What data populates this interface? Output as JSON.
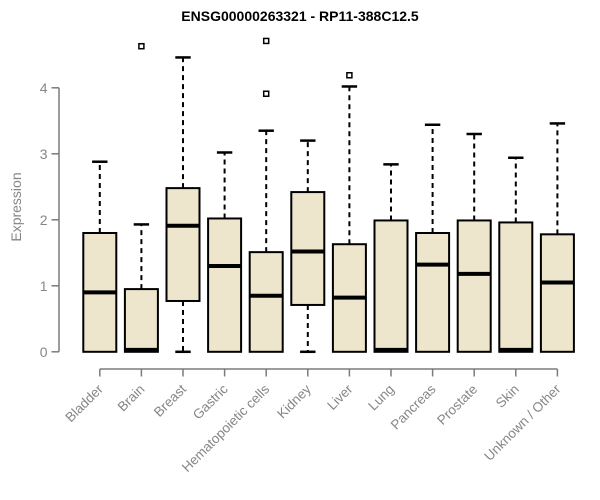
{
  "chart_data": {
    "type": "boxplot",
    "title": "ENSG00000263321 - RP11-388C12.5",
    "ylabel": "Expression",
    "xlabel": "",
    "ylim": [
      0,
      4.75
    ],
    "yticks": [
      0,
      1,
      2,
      3,
      4
    ],
    "grid": false,
    "legend": "none",
    "categories": [
      "Bladder",
      "Brain",
      "Breast",
      "Gastric",
      "Hematopoietic cells",
      "Kidney",
      "Liver",
      "Lung",
      "Pancreas",
      "Prostate",
      "Skin",
      "Unknown / Other"
    ],
    "boxes": [
      {
        "category": "Bladder",
        "whisker_low": 0,
        "q1": 0,
        "median": 0.9,
        "q3": 1.8,
        "whisker_high": 2.88,
        "outliers": []
      },
      {
        "category": "Brain",
        "whisker_low": 0,
        "q1": 0,
        "median": 0.03,
        "q3": 0.95,
        "whisker_high": 1.93,
        "outliers": [
          4.63
        ]
      },
      {
        "category": "Breast",
        "whisker_low": 0,
        "q1": 0.77,
        "median": 1.91,
        "q3": 2.48,
        "whisker_high": 4.46,
        "outliers": []
      },
      {
        "category": "Gastric",
        "whisker_low": 0,
        "q1": 0,
        "median": 1.3,
        "q3": 2.02,
        "whisker_high": 3.02,
        "outliers": []
      },
      {
        "category": "Hematopoietic cells",
        "whisker_low": 0,
        "q1": 0,
        "median": 0.85,
        "q3": 1.51,
        "whisker_high": 3.35,
        "outliers": [
          3.91,
          4.71
        ]
      },
      {
        "category": "Kidney",
        "whisker_low": 0,
        "q1": 0.71,
        "median": 1.52,
        "q3": 2.42,
        "whisker_high": 3.2,
        "outliers": []
      },
      {
        "category": "Liver",
        "whisker_low": 0,
        "q1": 0,
        "median": 0.82,
        "q3": 1.63,
        "whisker_high": 4.02,
        "outliers": [
          4.19
        ]
      },
      {
        "category": "Lung",
        "whisker_low": 0,
        "q1": 0,
        "median": 0.03,
        "q3": 1.99,
        "whisker_high": 2.84,
        "outliers": []
      },
      {
        "category": "Pancreas",
        "whisker_low": 0,
        "q1": 0,
        "median": 1.32,
        "q3": 1.8,
        "whisker_high": 3.44,
        "outliers": []
      },
      {
        "category": "Prostate",
        "whisker_low": 0,
        "q1": 0,
        "median": 1.18,
        "q3": 1.99,
        "whisker_high": 3.3,
        "outliers": []
      },
      {
        "category": "Skin",
        "whisker_low": 0,
        "q1": 0,
        "median": 0.03,
        "q3": 1.96,
        "whisker_high": 2.94,
        "outliers": []
      },
      {
        "category": "Unknown / Other",
        "whisker_low": 0,
        "q1": 0,
        "median": 1.05,
        "q3": 1.78,
        "whisker_high": 3.46,
        "outliers": []
      }
    ],
    "colors": {
      "box_fill": "#EDE6CC",
      "box_border": "#000000",
      "median": "#000000",
      "whisker": "#000000",
      "axis": "#7b7b7b",
      "tick_label": "#868686",
      "title": "#000000",
      "background": "#ffffff"
    }
  }
}
